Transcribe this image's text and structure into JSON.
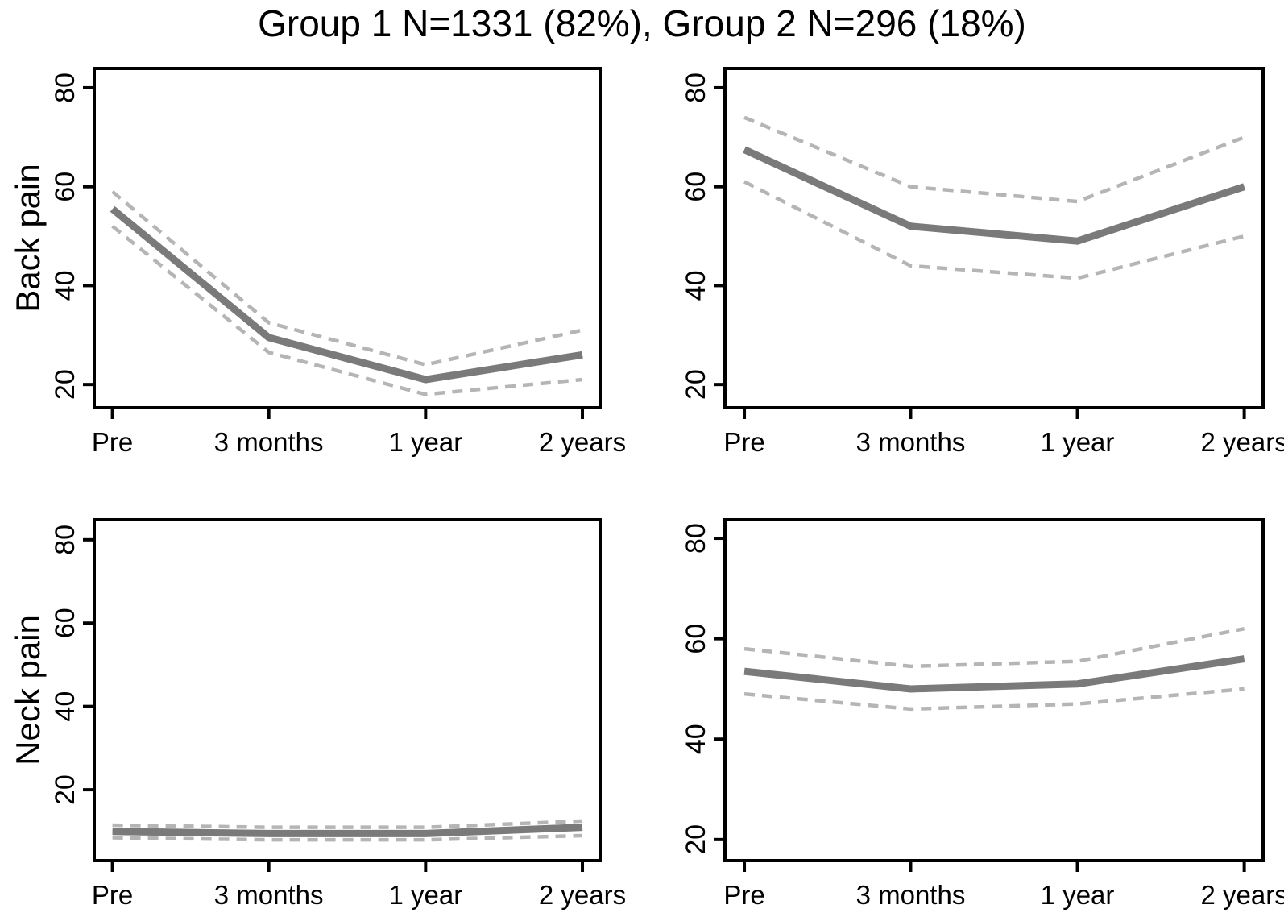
{
  "title": "Group 1 N=1331 (82%), Group 2 N=296 (18%)",
  "x_categories": [
    "Pre",
    "3 months",
    "1 year",
    "2 years"
  ],
  "y_ticks": [
    20,
    40,
    60,
    80
  ],
  "colors": {
    "mean_line": "#7a7a7a",
    "ci_line": "#b5b5b5",
    "axis": "#000000",
    "background": "#ffffff"
  },
  "chart_data": [
    {
      "type": "line",
      "panel": "group1-back-pain",
      "group": "Group 1",
      "row_label": "Back pain",
      "x": [
        "Pre",
        "3 months",
        "1 year",
        "2 years"
      ],
      "series": [
        {
          "name": "mean",
          "style": "solid",
          "values": [
            55.5,
            29.5,
            21,
            26
          ]
        },
        {
          "name": "upper-ci",
          "style": "dashed",
          "values": [
            59,
            32.5,
            24,
            31
          ]
        },
        {
          "name": "lower-ci",
          "style": "dashed",
          "values": [
            52,
            26.5,
            18,
            21
          ]
        }
      ],
      "yticks": [
        20,
        40,
        60,
        80
      ],
      "ylim": [
        15.3,
        83.9
      ],
      "grid": false,
      "legend": false
    },
    {
      "type": "line",
      "panel": "group2-back-pain",
      "group": "Group 2",
      "row_label": "",
      "x": [
        "Pre",
        "3 months",
        "1 year",
        "2 years"
      ],
      "series": [
        {
          "name": "mean",
          "style": "solid",
          "values": [
            67.5,
            52,
            49,
            60
          ]
        },
        {
          "name": "upper-ci",
          "style": "dashed",
          "values": [
            74,
            60,
            57,
            70
          ]
        },
        {
          "name": "lower-ci",
          "style": "dashed",
          "values": [
            61,
            44,
            41.5,
            50
          ]
        }
      ],
      "yticks": [
        20,
        40,
        60,
        80
      ],
      "ylim": [
        15.3,
        83.9
      ],
      "grid": false,
      "legend": false
    },
    {
      "type": "line",
      "panel": "group1-neck-pain",
      "group": "Group 1",
      "row_label": "Neck pain",
      "x": [
        "Pre",
        "3 months",
        "1 year",
        "2 years"
      ],
      "series": [
        {
          "name": "mean",
          "style": "solid",
          "values": [
            10,
            9.5,
            9.5,
            11
          ]
        },
        {
          "name": "upper-ci",
          "style": "dashed",
          "values": [
            11.5,
            11,
            11,
            12.5
          ]
        },
        {
          "name": "lower-ci",
          "style": "dashed",
          "values": [
            8.5,
            8,
            8,
            9
          ]
        }
      ],
      "yticks": [
        20,
        40,
        60,
        80
      ],
      "ylim": [
        3,
        84.8
      ],
      "grid": false,
      "legend": false
    },
    {
      "type": "line",
      "panel": "group2-neck-pain",
      "group": "Group 2",
      "row_label": "",
      "x": [
        "Pre",
        "3 months",
        "1 year",
        "2 years"
      ],
      "series": [
        {
          "name": "mean",
          "style": "solid",
          "values": [
            53.5,
            50,
            51,
            56
          ]
        },
        {
          "name": "upper-ci",
          "style": "dashed",
          "values": [
            58,
            54.5,
            55.5,
            62
          ]
        },
        {
          "name": "lower-ci",
          "style": "dashed",
          "values": [
            49,
            46,
            47,
            50
          ]
        }
      ],
      "yticks": [
        20,
        40,
        60,
        80
      ],
      "ylim": [
        15.8,
        83.7
      ],
      "grid": false,
      "legend": false
    }
  ]
}
